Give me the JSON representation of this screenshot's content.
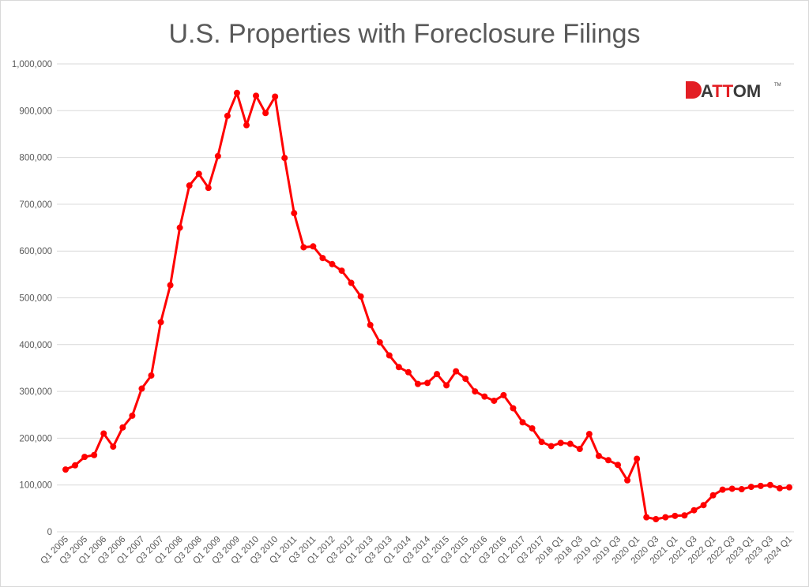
{
  "chart_data": {
    "type": "line",
    "title": "U.S. Properties with Foreclosure Filings",
    "xlabel": "",
    "ylabel": "",
    "ylim": [
      0,
      1000000
    ],
    "y_ticks": [
      0,
      100000,
      200000,
      300000,
      400000,
      500000,
      600000,
      700000,
      800000,
      900000,
      1000000
    ],
    "y_tick_labels": [
      "0",
      "100,000",
      "200,000",
      "300,000",
      "400,000",
      "500,000",
      "600,000",
      "700,000",
      "800,000",
      "900,000",
      "1,000,000"
    ],
    "grid": true,
    "legend": "none",
    "x_tick_every": 2,
    "x_tick_labels": [
      "Q1 2005",
      "Q3 2005",
      "Q1 2006",
      "Q3 2006",
      "Q1 2007",
      "Q3 2007",
      "Q1 2008",
      "Q3 2008",
      "Q1 2009",
      "Q3 2009",
      "Q1 2010",
      "Q3 2010",
      "Q1 2011",
      "Q3 2011",
      "Q1 2012",
      "Q3 2012",
      "Q1 2013",
      "Q3 2013",
      "Q1 2014",
      "Q3 2014",
      "Q1 2015",
      "Q3 2015",
      "Q1 2016",
      "Q3 2016",
      "Q1 2017",
      "Q3 2017",
      "2018 Q1",
      "2018 Q3",
      "2019 Q1",
      "2019 Q3",
      "2020 Q1",
      "2020 Q3",
      "2021 Q1",
      "2021 Q3",
      "2022 Q1",
      "2022 Q3",
      "2023 Q1",
      "2023 Q3",
      "2024 Q1"
    ],
    "series": [
      {
        "name": "Properties with Foreclosure Filings",
        "color": "#ff0000",
        "values": [
          133000,
          142000,
          160000,
          164000,
          210000,
          182000,
          223000,
          248000,
          306000,
          334000,
          448000,
          527000,
          650000,
          740000,
          765000,
          735000,
          803000,
          889000,
          938000,
          869000,
          932000,
          895000,
          930000,
          799000,
          681000,
          608000,
          610000,
          585000,
          572000,
          558000,
          532000,
          503000,
          442000,
          405000,
          377000,
          352000,
          341000,
          316000,
          318000,
          337000,
          313000,
          343000,
          327000,
          300000,
          289000,
          280000,
          292000,
          264000,
          234000,
          221000,
          192000,
          183000,
          190000,
          188000,
          177000,
          209000,
          162000,
          153000,
          143000,
          110000,
          156000,
          31000,
          27000,
          31000,
          34000,
          35000,
          46000,
          57000,
          78000,
          90000,
          92000,
          91000,
          96000,
          98000,
          100000,
          93000,
          95000
        ]
      }
    ]
  },
  "logo": {
    "text": "ATTOM",
    "mark": "TM",
    "accent": "#e31e24",
    "dark": "#3a3a3a"
  },
  "colors": {
    "grid": "#d9d9d9",
    "text": "#595959",
    "border": "#d9d9d9"
  }
}
